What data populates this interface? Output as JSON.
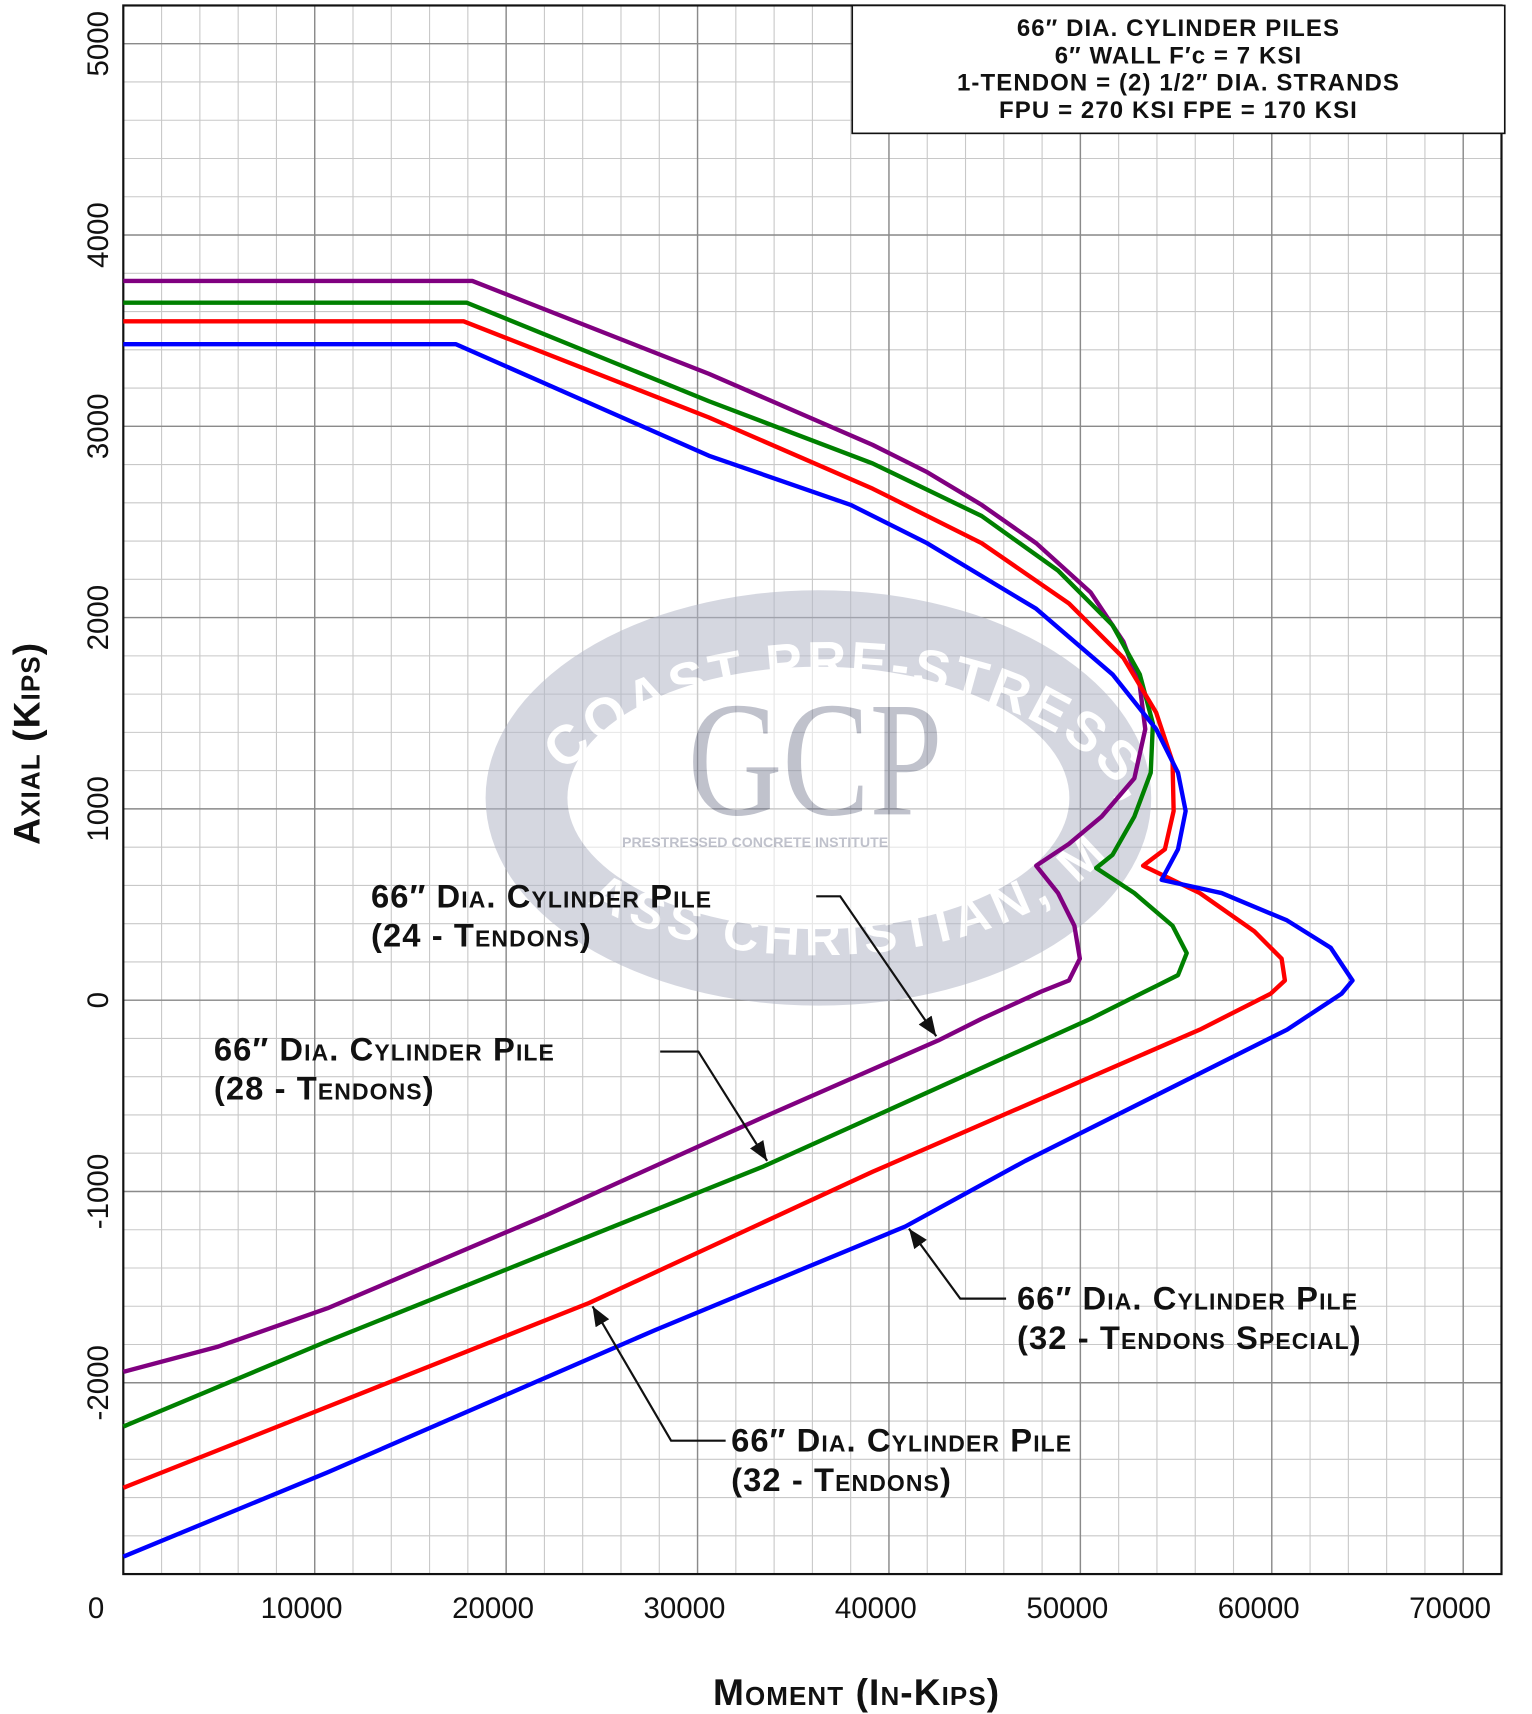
{
  "chart_data": {
    "type": "line",
    "xlabel": "Moment (In-Kips)",
    "ylabel": "Axial (Kips)",
    "xlim": [
      0,
      72000
    ],
    "ylim": [
      -3000,
      5200
    ],
    "xticks": [
      0,
      10000,
      20000,
      30000,
      40000,
      50000,
      60000,
      70000
    ],
    "yticks": [
      -2000,
      -1000,
      0,
      1000,
      2000,
      3000,
      4000,
      5000
    ],
    "x_minor_step": 2000,
    "y_minor_step": 200,
    "grid": true,
    "info_box": [
      "66″ DIA. CYLINDER PILES",
      "6″ WALL F′c = 7 KSI",
      "1-TENDON = (2) 1/2″ DIA. STRANDS",
      "FPU = 270 KSI  FPE = 170 KSI"
    ],
    "watermark": {
      "arc_top": "GULF COAST PRE-STRESS, INC.",
      "logo": "GCP",
      "institute": "PRESTRESSED CONCRETE INSTITUTE",
      "arc_bottom": "PASS CHRISTIAN, MS"
    },
    "annotations": [
      {
        "lines": [
          "66″ Dia. Cylinder Pile",
          "(24 - Tendons)"
        ]
      },
      {
        "lines": [
          "66″ Dia. Cylinder Pile",
          "(28 - Tendons)"
        ]
      },
      {
        "lines": [
          "66″ Dia. Cylinder Pile",
          "(32 - Tendons Special)"
        ]
      },
      {
        "lines": [
          "66″ Dia. Cylinder Pile",
          "(32 - Tendons)"
        ]
      }
    ],
    "series": [
      {
        "color": "#800080",
        "x": [
          0,
          18234,
          30600,
          39145,
          42000,
          44843,
          47692,
          50541,
          52250,
          53100,
          53390,
          52820,
          51111,
          49400,
          47692,
          48832,
          49687,
          49972,
          49402,
          47977,
          44843,
          42564,
          33447,
          22051,
          10655,
          4957,
          0
        ],
        "values": [
          3760,
          3760,
          3274,
          2903,
          2760,
          2589,
          2389,
          2131,
          1874,
          1646,
          1417,
          1160,
          960,
          817,
          703,
          560,
          389,
          217,
          103,
          46,
          -97,
          -211,
          -611,
          -1126,
          -1611,
          -1811,
          -1943
        ]
      },
      {
        "color": "#008000",
        "x": [
          0,
          17949,
          30598,
          39145,
          44843,
          48832,
          51681,
          53105,
          53789,
          53675,
          52820,
          51681,
          50826,
          52820,
          54815,
          55556,
          55100,
          53960,
          50541,
          33447,
          22051,
          10655,
          0
        ],
        "values": [
          3646,
          3646,
          3131,
          2806,
          2531,
          2246,
          1960,
          1703,
          1446,
          1189,
          960,
          760,
          691,
          560,
          389,
          246,
          131,
          74,
          -97,
          -869,
          -1326,
          -1783,
          -2229
        ]
      },
      {
        "color": "#ff0000",
        "x": [
          0,
          17778,
          30598,
          39145,
          44843,
          49402,
          52251,
          53960,
          54815,
          54872,
          54416,
          53276,
          56239,
          59088,
          60513,
          60684,
          59943,
          56239,
          39145,
          24330,
          10655,
          0
        ],
        "values": [
          3549,
          3549,
          3046,
          2674,
          2389,
          2074,
          1789,
          1503,
          1246,
          989,
          789,
          703,
          560,
          360,
          217,
          103,
          34,
          -154,
          -897,
          -1583,
          -2126,
          -2549
        ]
      },
      {
        "color": "#0000ff",
        "x": [
          0,
          17379,
          30598,
          38006,
          41994,
          47692,
          51681,
          53960,
          55100,
          55499,
          55100,
          54245,
          57379,
          60798,
          63077,
          64217,
          63647,
          60798,
          47123,
          40855,
          27749,
          10655,
          0
        ],
        "values": [
          3429,
          3429,
          2846,
          2589,
          2389,
          2046,
          1703,
          1417,
          1189,
          989,
          789,
          629,
          560,
          417,
          274,
          103,
          34,
          -154,
          -840,
          -1183,
          -1726,
          -2469,
          -2909
        ]
      }
    ]
  }
}
